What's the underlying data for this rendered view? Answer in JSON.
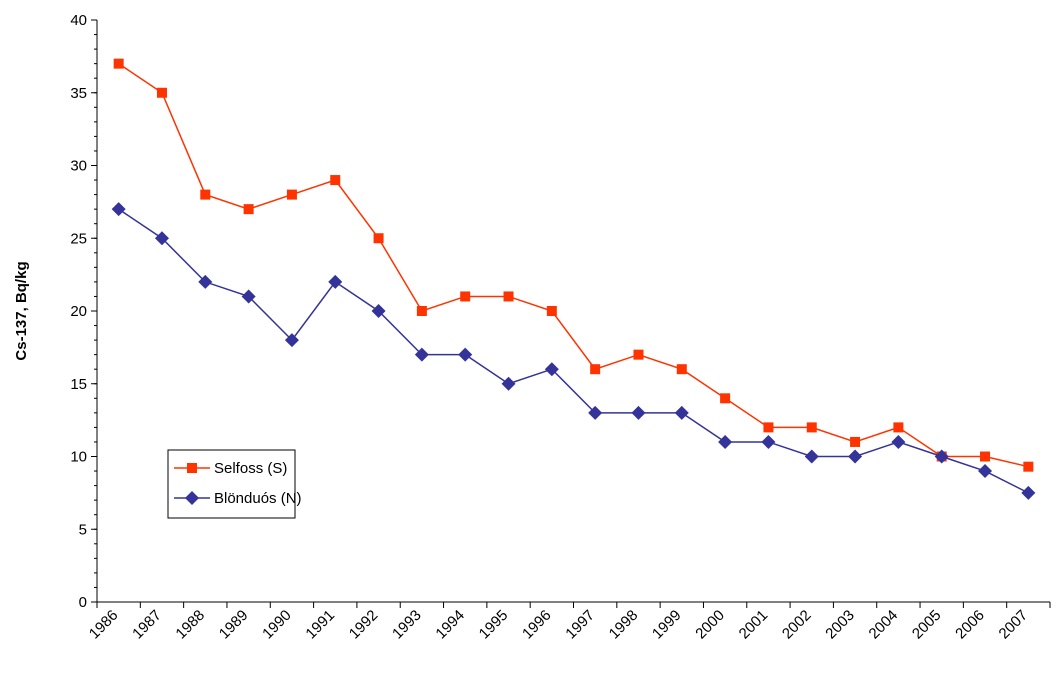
{
  "chart_data": {
    "type": "line",
    "y_label": "Cs-137, Bq/kg",
    "categories": [
      "1986",
      "1987",
      "1988",
      "1989",
      "1990",
      "1991",
      "1992",
      "1993",
      "1994",
      "1995",
      "1996",
      "1997",
      "1998",
      "1999",
      "2000",
      "2001",
      "2002",
      "2003",
      "2004",
      "2005",
      "2006",
      "2007"
    ],
    "series": [
      {
        "name": "Selfoss (S)",
        "color": "#ff3300",
        "marker": "square",
        "values": [
          37,
          35,
          28,
          27,
          28,
          29,
          25,
          20,
          21,
          21,
          20,
          16,
          17,
          16,
          14,
          12,
          12,
          11,
          12,
          10,
          10,
          9.3
        ]
      },
      {
        "name": "Blönduós (N)",
        "color": "#333399",
        "marker": "diamond",
        "values": [
          27,
          25,
          22,
          21,
          18,
          22,
          20,
          17,
          17,
          15,
          16,
          13,
          13,
          13,
          11,
          11,
          10,
          10,
          11,
          10,
          9,
          7.5
        ]
      }
    ],
    "ylim": [
      0,
      40
    ],
    "yticks": [
      0,
      5,
      10,
      15,
      20,
      25,
      30,
      35,
      40
    ],
    "legend": "lower left"
  }
}
